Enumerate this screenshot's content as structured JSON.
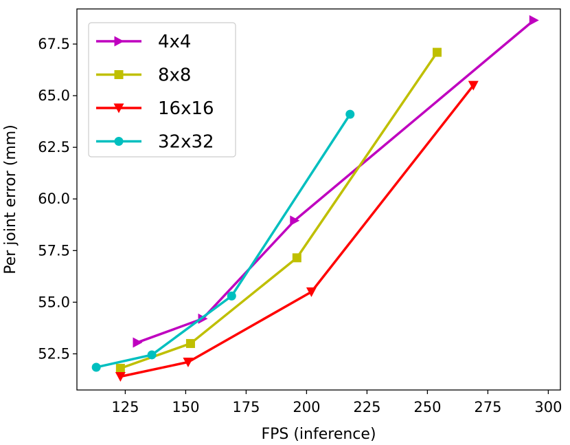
{
  "chart_data": {
    "type": "line",
    "xlabel": "FPS (inference)",
    "ylabel": "Per joint error (mm)",
    "xlim": [
      105,
      305
    ],
    "ylim": [
      50.75,
      69.2
    ],
    "xticks": [
      125,
      150,
      175,
      200,
      225,
      250,
      275,
      300
    ],
    "yticks": [
      52.5,
      55.0,
      57.5,
      60.0,
      62.5,
      65.0,
      67.5
    ],
    "xtick_labels": [
      "125",
      "150",
      "175",
      "200",
      "225",
      "250",
      "275",
      "300"
    ],
    "ytick_labels": [
      "52.5",
      "55.0",
      "57.5",
      "60.0",
      "62.5",
      "65.0",
      "67.5"
    ],
    "grid": false,
    "legend_position": "top-left",
    "series": [
      {
        "name": "4x4",
        "color": "#bf00bf",
        "marker": "triangle-right",
        "x": [
          130,
          157,
          195,
          294
        ],
        "y": [
          53.05,
          54.2,
          58.95,
          68.65
        ]
      },
      {
        "name": "8x8",
        "color": "#bfbf00",
        "marker": "square",
        "x": [
          123,
          152,
          196,
          254
        ],
        "y": [
          51.8,
          53.0,
          57.15,
          67.1
        ]
      },
      {
        "name": "16x16",
        "color": "#ff0000",
        "marker": "triangle-down",
        "x": [
          123,
          151,
          202,
          269
        ],
        "y": [
          51.4,
          52.1,
          55.5,
          65.5
        ]
      },
      {
        "name": "32x32",
        "color": "#00bfbf",
        "marker": "circle",
        "x": [
          113,
          136,
          169,
          218
        ],
        "y": [
          51.85,
          52.45,
          55.3,
          64.1
        ]
      }
    ]
  }
}
